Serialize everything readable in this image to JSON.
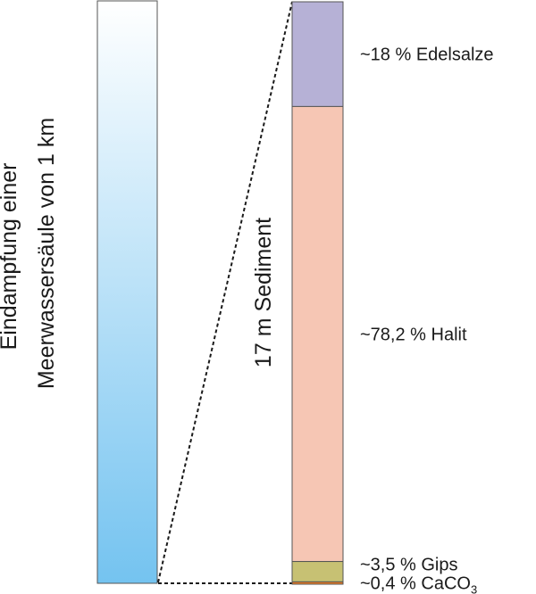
{
  "column_label": {
    "line1": "Eindampfung einer",
    "line2": "Meerwassersäule von 1 km"
  },
  "sediment_label": "17 m Sediment",
  "gradient_colors": {
    "top": "#ffffff",
    "bottom": "#74c3f0"
  },
  "layers": [
    {
      "label": "~18 % Edelsalze",
      "percent": 18,
      "color": "#b6b1d6"
    },
    {
      "label": "~78,2 % Halit",
      "percent": 78.2,
      "color": "#f6c6b4"
    },
    {
      "label": "~3,5 % Gips",
      "percent": 3.5,
      "color": "#c7c173"
    },
    {
      "label": "~0,4 % CaCO",
      "subscript": "3",
      "percent": 0.4,
      "color": "#e97a22"
    }
  ]
}
